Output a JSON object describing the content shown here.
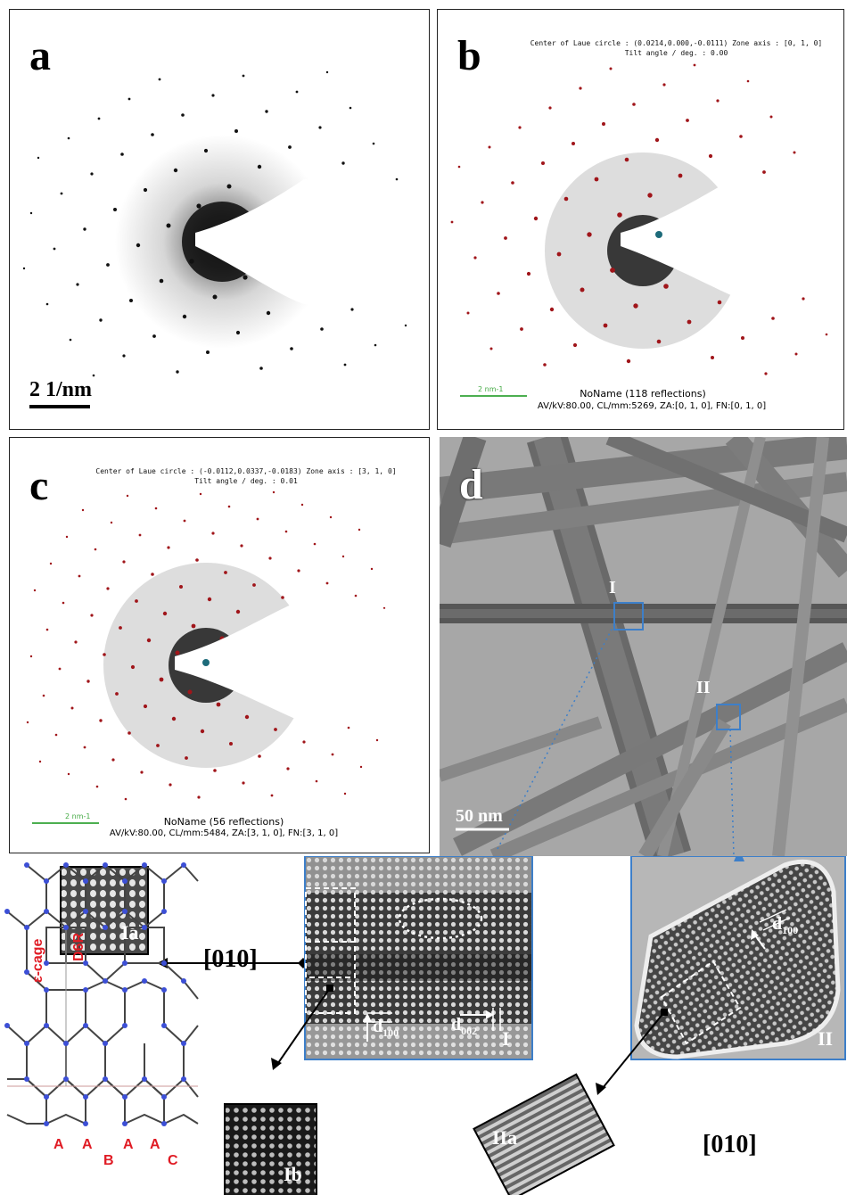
{
  "panels": {
    "a": {
      "label": "a",
      "scale": "2 1/nm"
    },
    "b": {
      "label": "b",
      "header1": "Center of Laue circle : (0.0214,0.000,-0.0111) Zone axis : [0, 1, 0]",
      "header2": "Tilt angle / deg. : 0.00",
      "scale": "2 nm-1",
      "footer1": "NoName (118 reflections)",
      "footer2": "AV/kV:80.00, CL/mm:5269, ZA:[0, 1, 0], FN:[0, 1, 0]"
    },
    "c": {
      "label": "c",
      "header1": "Center of Laue circle : (-0.0112,0.0337,-0.0183) Zone axis : [3, 1, 0]",
      "header2": "Tilt angle / deg. : 0.01",
      "scale": "2 nm-1",
      "footer1": "NoName (56 reflections)",
      "footer2": "AV/kV:80.00, CL/mm:5484, ZA:[3, 1, 0], FN:[3, 1, 0]"
    },
    "d": {
      "label": "d",
      "region1": "I",
      "region2": "II",
      "scale": "50 nm"
    }
  },
  "bottom": {
    "inset_Ia": "Ia",
    "inset_Ib": "Ib",
    "inset_IIa": "IIa",
    "zone1": "[010]",
    "zone2": "[010]",
    "hrtem_I": {
      "label": "I",
      "d100": "d",
      "d100_sub": "100",
      "d002": "d",
      "d002_sub": "002"
    },
    "hrtem_II": {
      "label": "II",
      "d100": "d",
      "d100_sub": "100"
    },
    "framework": {
      "cage": "ε-cage",
      "ring": "D6R",
      "stacking": [
        "A",
        "A",
        "B",
        "A",
        "A",
        "C"
      ]
    }
  },
  "colors": {
    "spot": "#a0151a",
    "scale_green": "#4caf50",
    "highlight_blue": "#3d7fc9",
    "framework_red": "#e01b24"
  }
}
